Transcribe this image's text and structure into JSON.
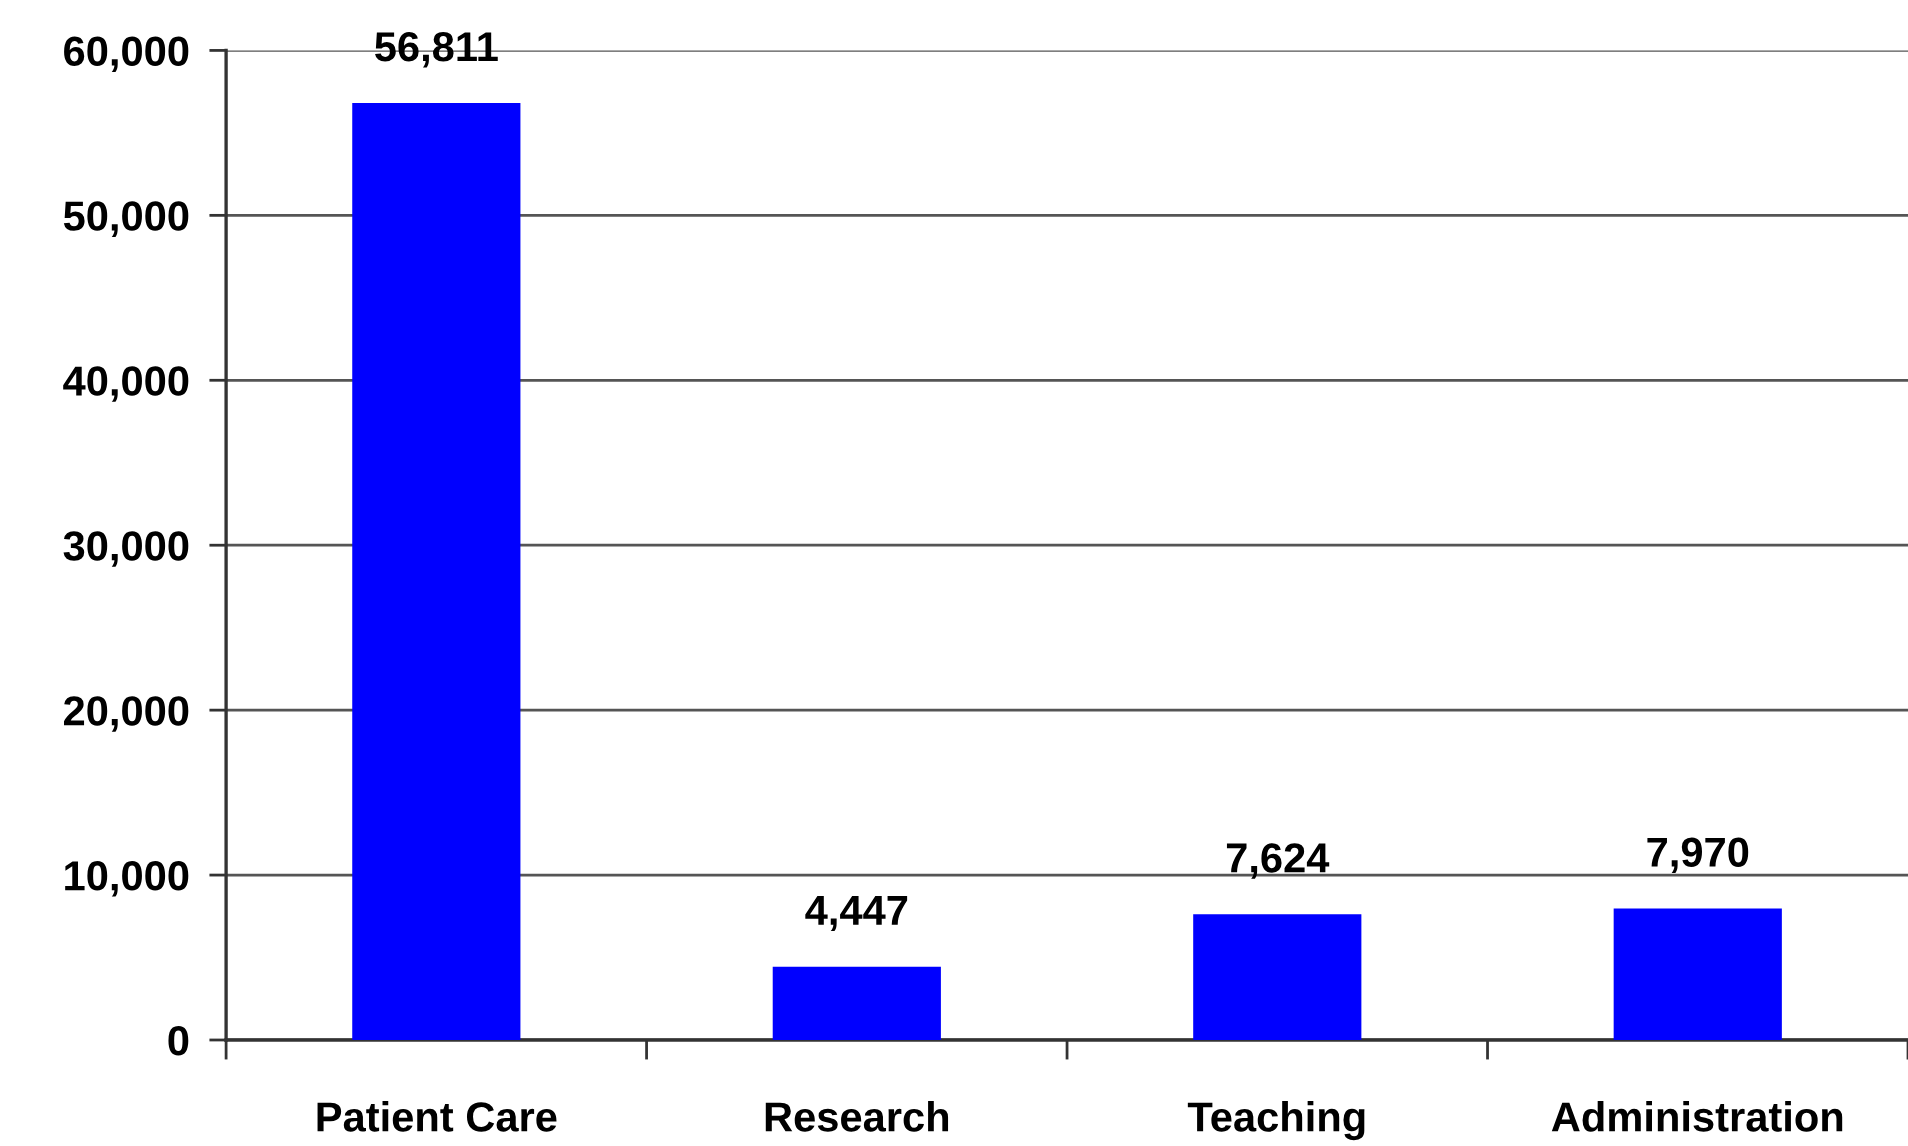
{
  "chart_data": {
    "type": "bar",
    "categories": [
      "Patient Care",
      "Research",
      "Teaching",
      "Administration"
    ],
    "values": [
      56811,
      4447,
      7624,
      7970
    ],
    "value_labels": [
      "56,811",
      "4,447",
      "7,624",
      "7,970"
    ],
    "color": "#0000ff",
    "ylim": [
      0,
      60000
    ],
    "yticks": [
      0,
      {
        "value": 10000,
        "label": "10,000"
      },
      {
        "value": 20000,
        "label": "20,000"
      },
      {
        "value": 30000,
        "label": "30,000"
      },
      {
        "value": 40000,
        "label": "40,000"
      },
      {
        "value": 50000,
        "label": "50,000"
      },
      {
        "value": 60000,
        "label": "60,000"
      }
    ],
    "grid": "y"
  }
}
